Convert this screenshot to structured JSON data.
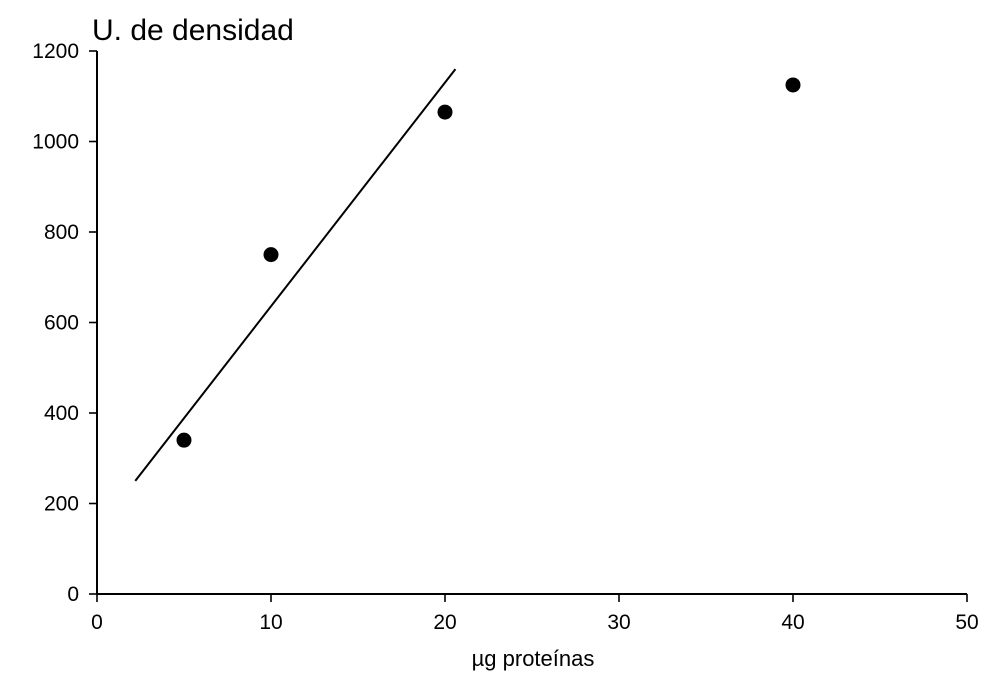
{
  "chart_data": {
    "type": "scatter",
    "ylabel": "U. de densidad",
    "xlabel": "µg proteínas",
    "xlim": [
      0,
      50
    ],
    "ylim": [
      0,
      1200
    ],
    "xticks": [
      0,
      10,
      20,
      30,
      40,
      50
    ],
    "yticks": [
      0,
      200,
      400,
      600,
      800,
      1000,
      1200
    ],
    "xtick_labels": [
      "0",
      "10",
      "20",
      "30",
      "40",
      "50"
    ],
    "ytick_labels": [
      "0",
      "200",
      "400",
      "600",
      "800",
      "1000",
      "1200"
    ],
    "grid": false,
    "series": [
      {
        "x": [
          5,
          10,
          20,
          40
        ],
        "y": [
          340,
          750,
          1065,
          1125
        ]
      }
    ],
    "fit_line": {
      "x": [
        2.2,
        20.6
      ],
      "y": [
        250,
        1160
      ]
    }
  }
}
